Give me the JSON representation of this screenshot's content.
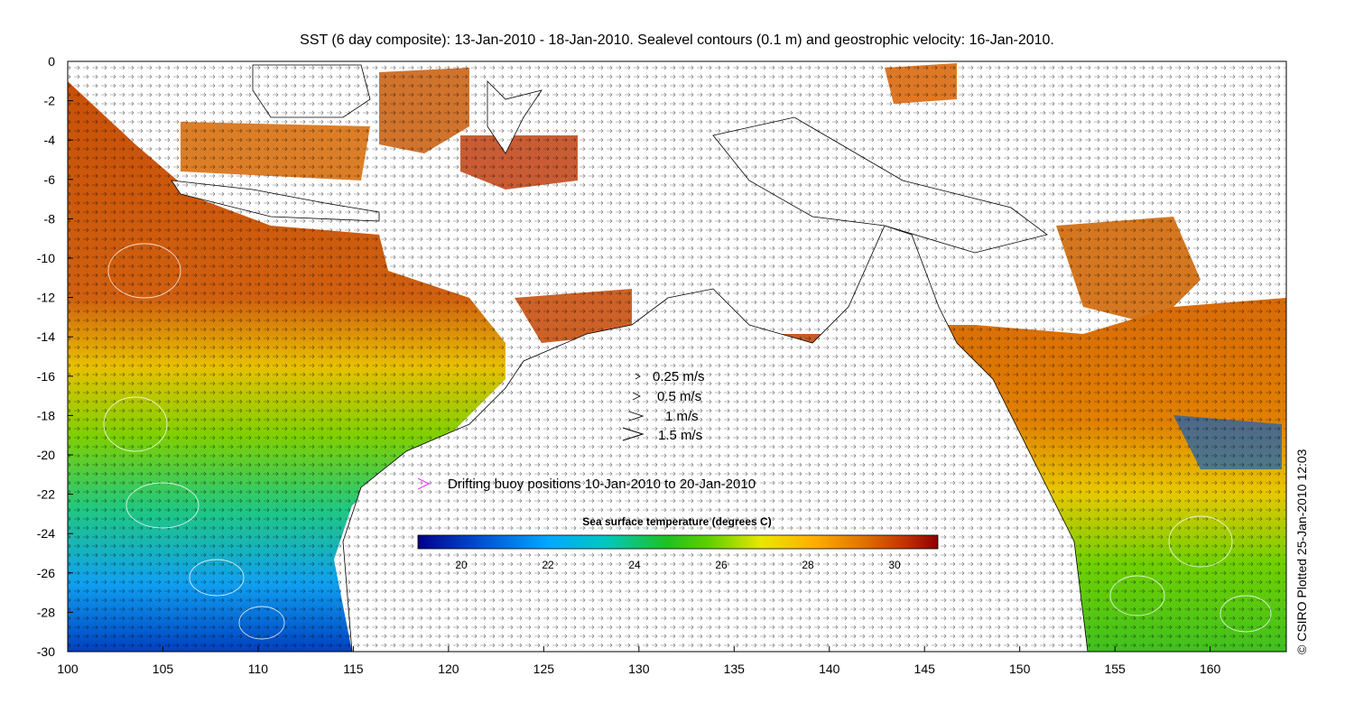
{
  "title": "SST (6 day composite): 13-Jan-2010 - 18-Jan-2010. Sealevel contours (0.1 m) and geostrophic velocity: 16-Jan-2010.",
  "credit": "© CSIRO Plotted 25-Jan-2010 12:03",
  "map": {
    "lon_range": [
      100,
      164
    ],
    "lat_range": [
      -30,
      0
    ],
    "x_ticks": [
      "100",
      "105",
      "110",
      "115",
      "120",
      "125",
      "130",
      "135",
      "140",
      "145",
      "150",
      "155",
      "160"
    ],
    "y_ticks": [
      "0",
      "-2",
      "-4",
      "-6",
      "-8",
      "-10",
      "-12",
      "-14",
      "-16",
      "-18",
      "-20",
      "-22",
      "-24",
      "-26",
      "-28",
      "-30"
    ],
    "regions": [
      {
        "name": "Australia",
        "type": "land"
      },
      {
        "name": "New Guinea",
        "type": "land"
      },
      {
        "name": "Borneo",
        "type": "land"
      },
      {
        "name": "Sulawesi",
        "type": "land"
      },
      {
        "name": "Java",
        "type": "land"
      }
    ]
  },
  "velocity_legend": [
    {
      "label": "0.25 m/s",
      "speed": 0.25
    },
    {
      "label": "0.5 m/s",
      "speed": 0.5
    },
    {
      "label": "1 m/s",
      "speed": 1
    },
    {
      "label": "1.5 m/s",
      "speed": 1.5
    }
  ],
  "buoy_legend": {
    "label": "Drifting buoy positions 10-Jan-2010 to 20-Jan-2010",
    "color": "#ff33ff"
  },
  "colorbar": {
    "title": "Sea surface temperature (degrees C)",
    "range": [
      19,
      31
    ],
    "ticks": [
      "20",
      "22",
      "24",
      "26",
      "28",
      "30"
    ],
    "colors": [
      "#00008b",
      "#0050d0",
      "#00a8ff",
      "#00c8c0",
      "#00c040",
      "#40d000",
      "#e8e800",
      "#ffb000",
      "#e07000",
      "#c03000",
      "#8b0000"
    ]
  }
}
